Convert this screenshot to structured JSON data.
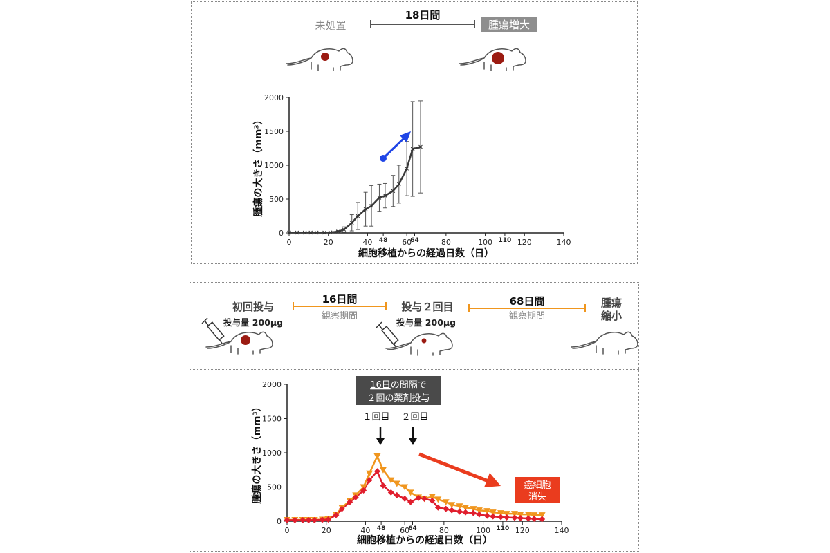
{
  "top_header": {
    "untreated": "未処置",
    "duration": "18日間",
    "growth_badge": "腫瘍増大"
  },
  "bottom_header": {
    "first_dose": "初回投与",
    "dose_amount_1": "投与量 200μg",
    "interval_1": "16日間",
    "observation_1": "観察期間",
    "second_dose": "投与２回目",
    "dose_amount_2": "投与量 200μg",
    "interval_2": "68日間",
    "observation_2": "観察期間",
    "shrink_line1": "腫瘍",
    "shrink_line2": "縮小"
  },
  "annotations": {
    "dose_box_line1_underlined": "16日",
    "dose_box_line1_rest": "の間隔で",
    "dose_box_line2": "２回の薬剤投与",
    "arrow1_label": "１回目",
    "arrow2_label": "２回目",
    "vanish_line1": "癌細胞",
    "vanish_line2": "消失"
  },
  "colors": {
    "tumor": "#9b1b12",
    "badge_bg": "#8e8e8e",
    "orange": "#f0961e",
    "red": "#e01e2d",
    "blue": "#1f45e6",
    "arrow_red": "#ea3c1e",
    "dose_box_bg": "#4a4a4a",
    "line_dark": "#3a3a3a"
  },
  "chart_data": [
    {
      "type": "line",
      "xlabel": "細胞移植からの経過日数（日）",
      "ylabel": "腫瘍の大きさ（mm³）",
      "xlim": [
        0,
        140
      ],
      "ylim": [
        0,
        2000
      ],
      "xticks": [
        0,
        20,
        40,
        48,
        60,
        64,
        80,
        100,
        110,
        120,
        140
      ],
      "yticks": [
        0,
        500,
        1000,
        1500,
        2000
      ],
      "series": [
        {
          "name": "",
          "x": [
            0,
            4,
            8,
            11,
            14,
            18,
            21,
            25,
            28,
            32,
            35,
            39,
            42,
            46,
            49,
            53,
            56,
            60,
            63,
            67
          ],
          "y": [
            5,
            5,
            5,
            5,
            5,
            5,
            8,
            20,
            50,
            150,
            250,
            350,
            400,
            520,
            550,
            620,
            720,
            950,
            1240,
            1270
          ],
          "err": [
            0,
            0,
            0,
            0,
            0,
            0,
            5,
            15,
            40,
            120,
            200,
            250,
            300,
            200,
            180,
            230,
            280,
            400,
            700,
            680
          ]
        }
      ]
    },
    {
      "type": "line",
      "xlabel": "細胞移植からの経過日数（日）",
      "ylabel": "腫瘍の大きさ（mm³）",
      "xlim": [
        0,
        140
      ],
      "ylim": [
        0,
        2000
      ],
      "xticks": [
        0,
        20,
        40,
        48,
        60,
        64,
        80,
        100,
        110,
        120,
        140
      ],
      "yticks": [
        0,
        500,
        1000,
        1500,
        2000
      ],
      "series": [
        {
          "name": "",
          "marker": "triangle-down",
          "x": [
            0,
            4,
            8,
            11,
            14,
            18,
            21,
            25,
            28,
            32,
            35,
            39,
            42,
            46,
            49,
            53,
            56,
            60,
            63,
            67,
            70,
            74,
            77,
            81,
            84,
            88,
            91,
            95,
            98,
            102,
            105,
            109,
            112,
            116,
            119,
            123,
            126,
            130
          ],
          "y": [
            20,
            20,
            20,
            20,
            20,
            25,
            30,
            100,
            200,
            300,
            380,
            500,
            700,
            950,
            750,
            600,
            550,
            500,
            420,
            350,
            330,
            360,
            320,
            280,
            240,
            220,
            200,
            180,
            160,
            150,
            130,
            120,
            110,
            110,
            100,
            100,
            90,
            90
          ]
        },
        {
          "name": "",
          "marker": "diamond",
          "x": [
            0,
            4,
            8,
            11,
            14,
            18,
            21,
            25,
            28,
            32,
            35,
            39,
            42,
            46,
            49,
            53,
            56,
            60,
            63,
            67,
            70,
            74,
            77,
            81,
            84,
            88,
            91,
            95,
            98,
            102,
            105,
            109,
            112,
            116,
            119,
            123,
            126,
            130
          ],
          "y": [
            15,
            15,
            15,
            15,
            15,
            20,
            25,
            90,
            180,
            280,
            350,
            450,
            600,
            730,
            520,
            420,
            380,
            330,
            280,
            340,
            330,
            300,
            200,
            180,
            160,
            140,
            130,
            120,
            100,
            80,
            70,
            60,
            55,
            50,
            45,
            40,
            35,
            30
          ]
        }
      ]
    }
  ]
}
